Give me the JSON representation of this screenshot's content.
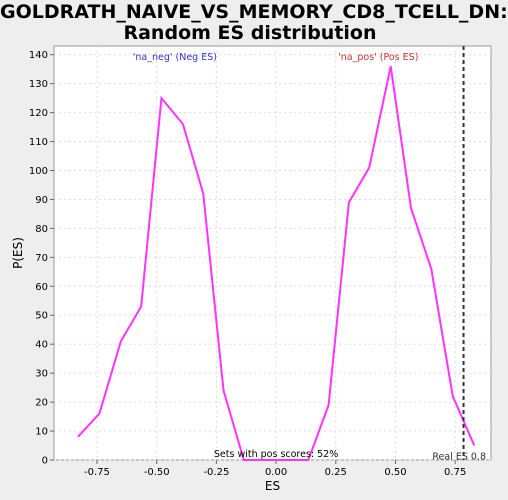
{
  "chart_data": {
    "type": "line",
    "title_line1": "GOLDRATH_NAIVE_VS_MEMORY_CD8_TCELL_DN:",
    "title_line2": "Random ES distribution",
    "xlabel": "ES",
    "ylabel": "P(ES)",
    "xlim": [
      -0.93,
      0.9
    ],
    "ylim": [
      0,
      143
    ],
    "xticks": [
      -0.75,
      -0.5,
      -0.25,
      0.0,
      0.25,
      0.5,
      0.75
    ],
    "xtick_labels": [
      "-0.75",
      "-0.50",
      "-0.25",
      "0.00",
      "0.25",
      "0.50",
      "0.75"
    ],
    "yticks": [
      0,
      10,
      20,
      30,
      40,
      50,
      60,
      70,
      80,
      90,
      100,
      110,
      120,
      130,
      140
    ],
    "ytick_labels": [
      "0",
      "10",
      "20",
      "30",
      "40",
      "50",
      "60",
      "70",
      "80",
      "90",
      "100",
      "110",
      "120",
      "130",
      "140"
    ],
    "grid": true,
    "series": [
      {
        "color": "#ff33ff",
        "x": [
          -0.83,
          -0.74,
          -0.65,
          -0.565,
          -0.48,
          -0.39,
          -0.305,
          -0.22,
          -0.135,
          0.135,
          0.22,
          0.305,
          0.39,
          0.48,
          0.565,
          0.65,
          0.74,
          0.83
        ],
        "y": [
          8,
          16,
          41,
          53,
          125,
          116,
          92,
          24,
          0,
          0,
          19,
          89,
          101,
          136,
          87,
          66,
          22,
          5
        ]
      }
    ],
    "annotations": {
      "neg_label": "'na_neg' (Neg ES)",
      "pos_label": "'na_pos' (Pos ES)",
      "pos_share": "Sets with pos scores: 52%",
      "real_es_label": "Real ES 0.8",
      "real_es": 0.785
    },
    "colors": {
      "neg_label": "#3333cc",
      "pos_label": "#cc3333",
      "line": "#ff33ff",
      "real_es_line": "#333333",
      "grid": "#dddddd"
    }
  }
}
